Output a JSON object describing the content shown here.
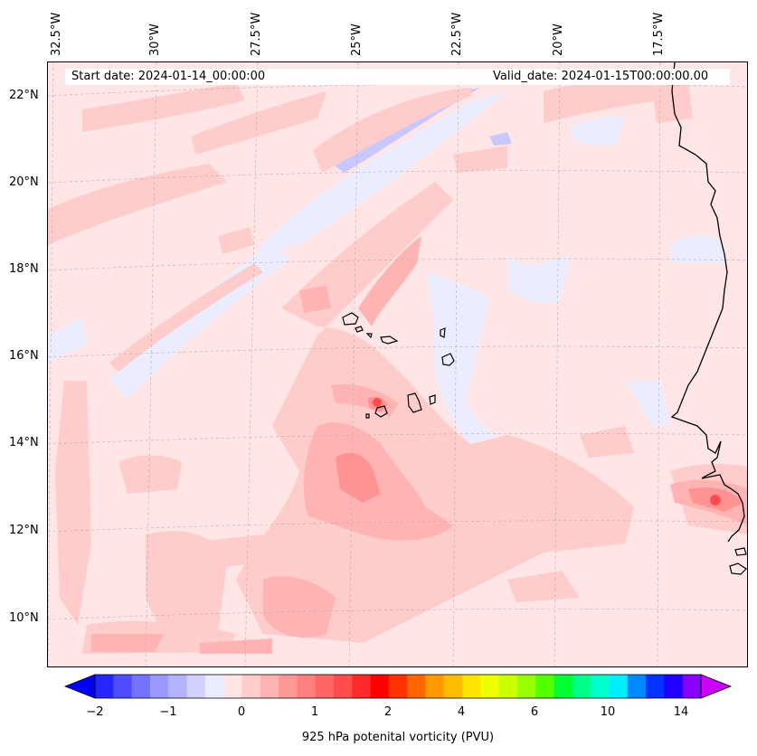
{
  "header": {
    "start_date": "Start date: 2024-01-14_00:00:00",
    "valid_date": "Valid_date: 2024-01-15T00:00:00.00"
  },
  "lon_labels": [
    "32.5°W",
    "30°W",
    "27.5°W",
    "25°W",
    "22.5°W",
    "20°W",
    "17.5°W"
  ],
  "lat_labels": [
    "22°N",
    "20°N",
    "18°N",
    "16°N",
    "14°N",
    "12°N",
    "10°N"
  ],
  "colorbar": {
    "ticks": [
      "−2",
      "−1",
      "0",
      "1",
      "2",
      "4",
      "6",
      "10",
      "14"
    ],
    "title": "925 hPa potenital vorticity (PVU)",
    "colors": [
      "#0000ff",
      "#2626ff",
      "#4d4dff",
      "#7373ff",
      "#9999ff",
      "#b3b3ff",
      "#d1d1ff",
      "#ececff",
      "#ffe5e5",
      "#ffcccc",
      "#ffb3b3",
      "#ff9999",
      "#ff8080",
      "#ff6666",
      "#ff4d4d",
      "#ff2b2b",
      "#ff0000",
      "#ff3300",
      "#ff6600",
      "#ff9900",
      "#ffbb00",
      "#ffe600",
      "#eeff00",
      "#ccff00",
      "#99ff00",
      "#55ff00",
      "#00ff33",
      "#00ff88",
      "#00ffcc",
      "#00eeff",
      "#0088ff",
      "#0033ff",
      "#2200ff",
      "#8800ff",
      "#cc00ff"
    ],
    "extend_low_color": "#0000ff",
    "extend_high_color": "#cc00ff"
  },
  "colors": {
    "background": "#ffe5e5",
    "light_blue": "#ececff",
    "blue": "#c8c8ff",
    "pink_1": "#ffcccc",
    "pink_2": "#ffb3b3",
    "pink_3": "#ff9393",
    "red": "#ff4d4d"
  }
}
